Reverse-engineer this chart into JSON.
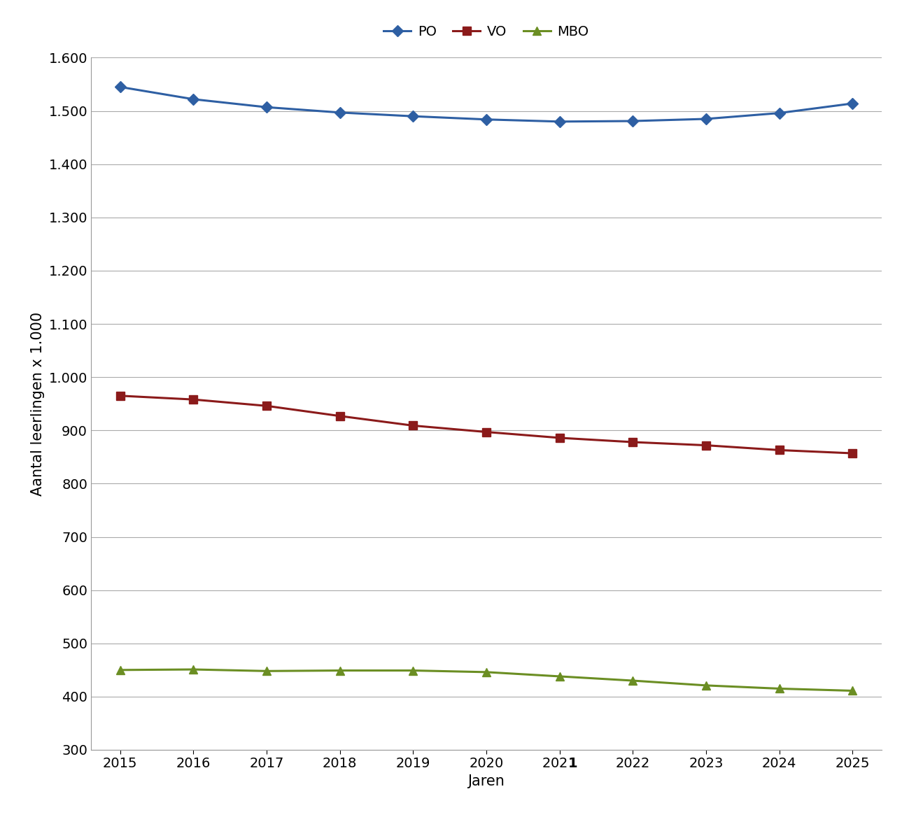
{
  "years": [
    2015,
    2016,
    2017,
    2018,
    2019,
    2020,
    2021,
    2022,
    2023,
    2024,
    2025
  ],
  "PO": [
    1545,
    1522,
    1507,
    1497,
    1490,
    1484,
    1480,
    1481,
    1485,
    1496,
    1514
  ],
  "VO": [
    965,
    958,
    946,
    927,
    909,
    897,
    886,
    878,
    872,
    863,
    857
  ],
  "MBO": [
    450,
    451,
    448,
    449,
    449,
    446,
    438,
    430,
    421,
    415,
    411
  ],
  "PO_color": "#2E5FA3",
  "VO_color": "#8B1A1A",
  "MBO_color": "#6B8E23",
  "xlabel": "Jaren",
  "ylabel": "Aantal leerlingen x 1.000",
  "ylim_min": 300,
  "ylim_max": 1600,
  "ytick_step": 100,
  "legend_labels": [
    "PO",
    "VO",
    "MBO"
  ],
  "background_color": "#FFFFFF",
  "grid_color": "#AAAAAA",
  "axis_label_fontsize": 15,
  "tick_fontsize": 14,
  "legend_fontsize": 14,
  "linewidth": 2.2,
  "markersize": 8
}
